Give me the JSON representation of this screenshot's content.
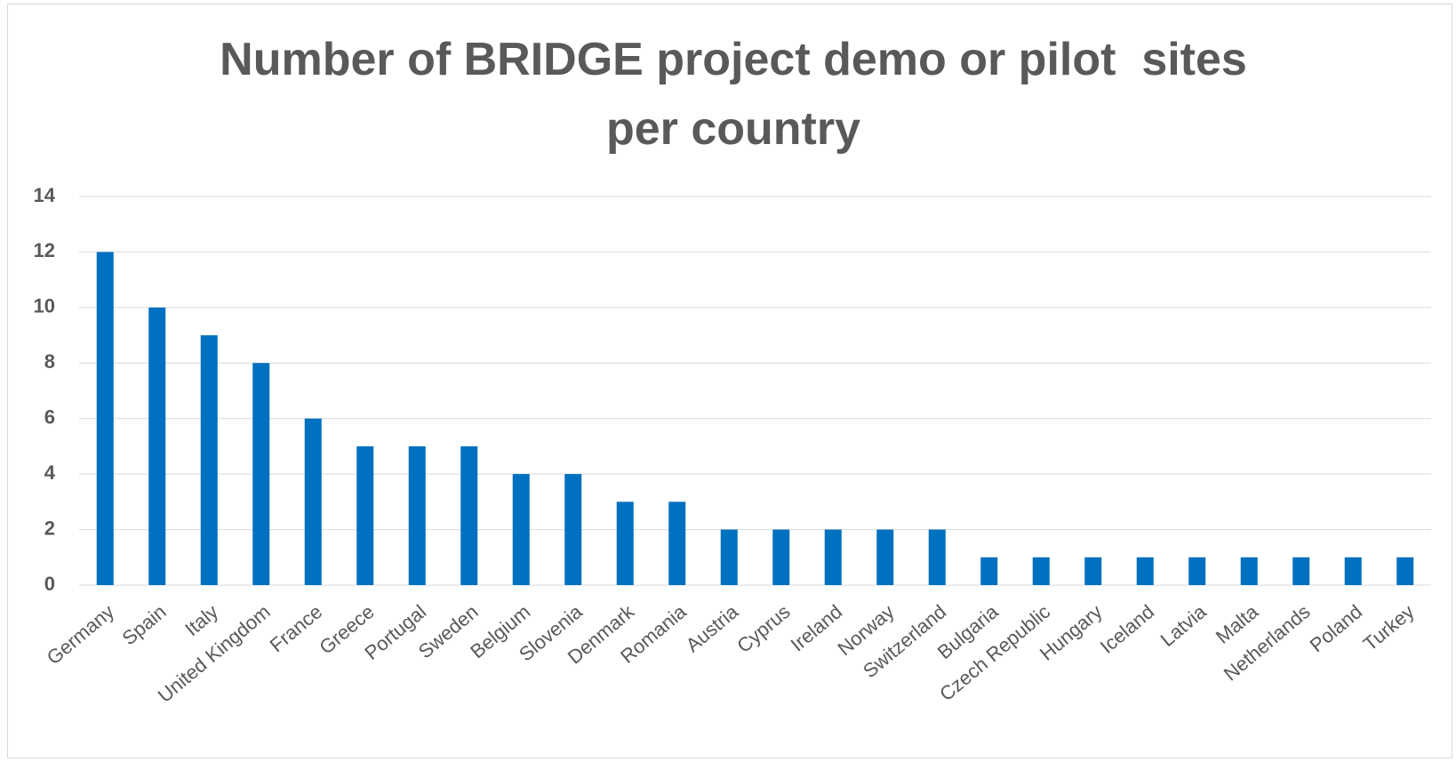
{
  "chart_data": {
    "type": "bar",
    "title": "Number of BRIDGE project demo or pilot  sites per country",
    "categories": [
      "Germany",
      "Spain",
      "Italy",
      "United Kingdom",
      "France",
      "Greece",
      "Portugal",
      "Sweden",
      "Belgium",
      "Slovenia",
      "Denmark",
      "Romania",
      "Austria",
      "Cyprus",
      "Ireland",
      "Norway",
      "Switzerland",
      "Bulgaria",
      "Czech Republic",
      "Hungary",
      "Iceland",
      "Latvia",
      "Malta",
      "Netherlands",
      "Poland",
      "Turkey"
    ],
    "values": [
      12,
      10,
      9,
      8,
      6,
      5,
      5,
      5,
      4,
      4,
      3,
      3,
      2,
      2,
      2,
      2,
      2,
      1,
      1,
      1,
      1,
      1,
      1,
      1,
      1,
      1
    ],
    "color": "#0070c0",
    "ylim": [
      0,
      14
    ],
    "yticks": [
      0,
      2,
      4,
      6,
      8,
      10,
      12,
      14
    ],
    "grid": true
  }
}
